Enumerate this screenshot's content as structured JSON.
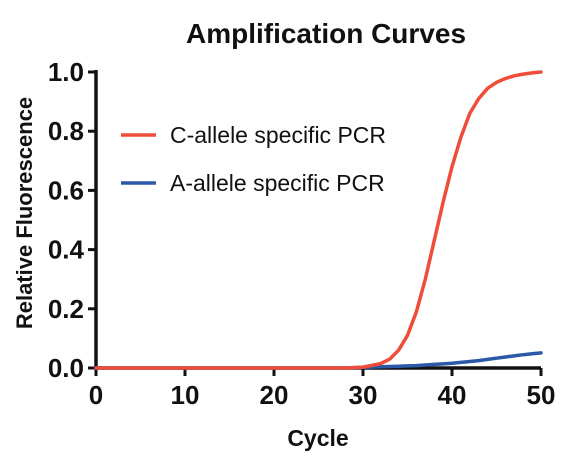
{
  "chart_data": {
    "type": "line",
    "title": "Amplification Curves",
    "xlabel": "Cycle",
    "ylabel": "Relative Fluorescence",
    "xlim": [
      0,
      50
    ],
    "ylim": [
      0,
      1.0
    ],
    "xticks": [
      "0",
      "10",
      "20",
      "30",
      "40",
      "50"
    ],
    "yticks": [
      "0.0",
      "0.2",
      "0.4",
      "0.6",
      "0.8",
      "1.0"
    ],
    "grid": false,
    "legend_position": "upper-left",
    "x": [
      0,
      5,
      10,
      15,
      20,
      25,
      28,
      30,
      32,
      33,
      34,
      35,
      36,
      37,
      38,
      39,
      40,
      41,
      42,
      43,
      44,
      45,
      46,
      47,
      48,
      49,
      50
    ],
    "series": [
      {
        "name": "C-allele specific PCR",
        "color": "#ef4c3a",
        "values": [
          0,
          0,
          0,
          0,
          0,
          0,
          0,
          0.003,
          0.015,
          0.03,
          0.06,
          0.11,
          0.19,
          0.3,
          0.43,
          0.56,
          0.68,
          0.78,
          0.86,
          0.91,
          0.945,
          0.965,
          0.978,
          0.987,
          0.993,
          0.997,
          1.0
        ]
      },
      {
        "name": "A-allele specific PCR",
        "color": "#2b59a8",
        "values": [
          0,
          0,
          0,
          0,
          0,
          0,
          0,
          0.002,
          0.004,
          0.005,
          0.006,
          0.007,
          0.008,
          0.01,
          0.012,
          0.014,
          0.016,
          0.019,
          0.022,
          0.025,
          0.029,
          0.033,
          0.037,
          0.041,
          0.045,
          0.048,
          0.051
        ]
      }
    ]
  }
}
